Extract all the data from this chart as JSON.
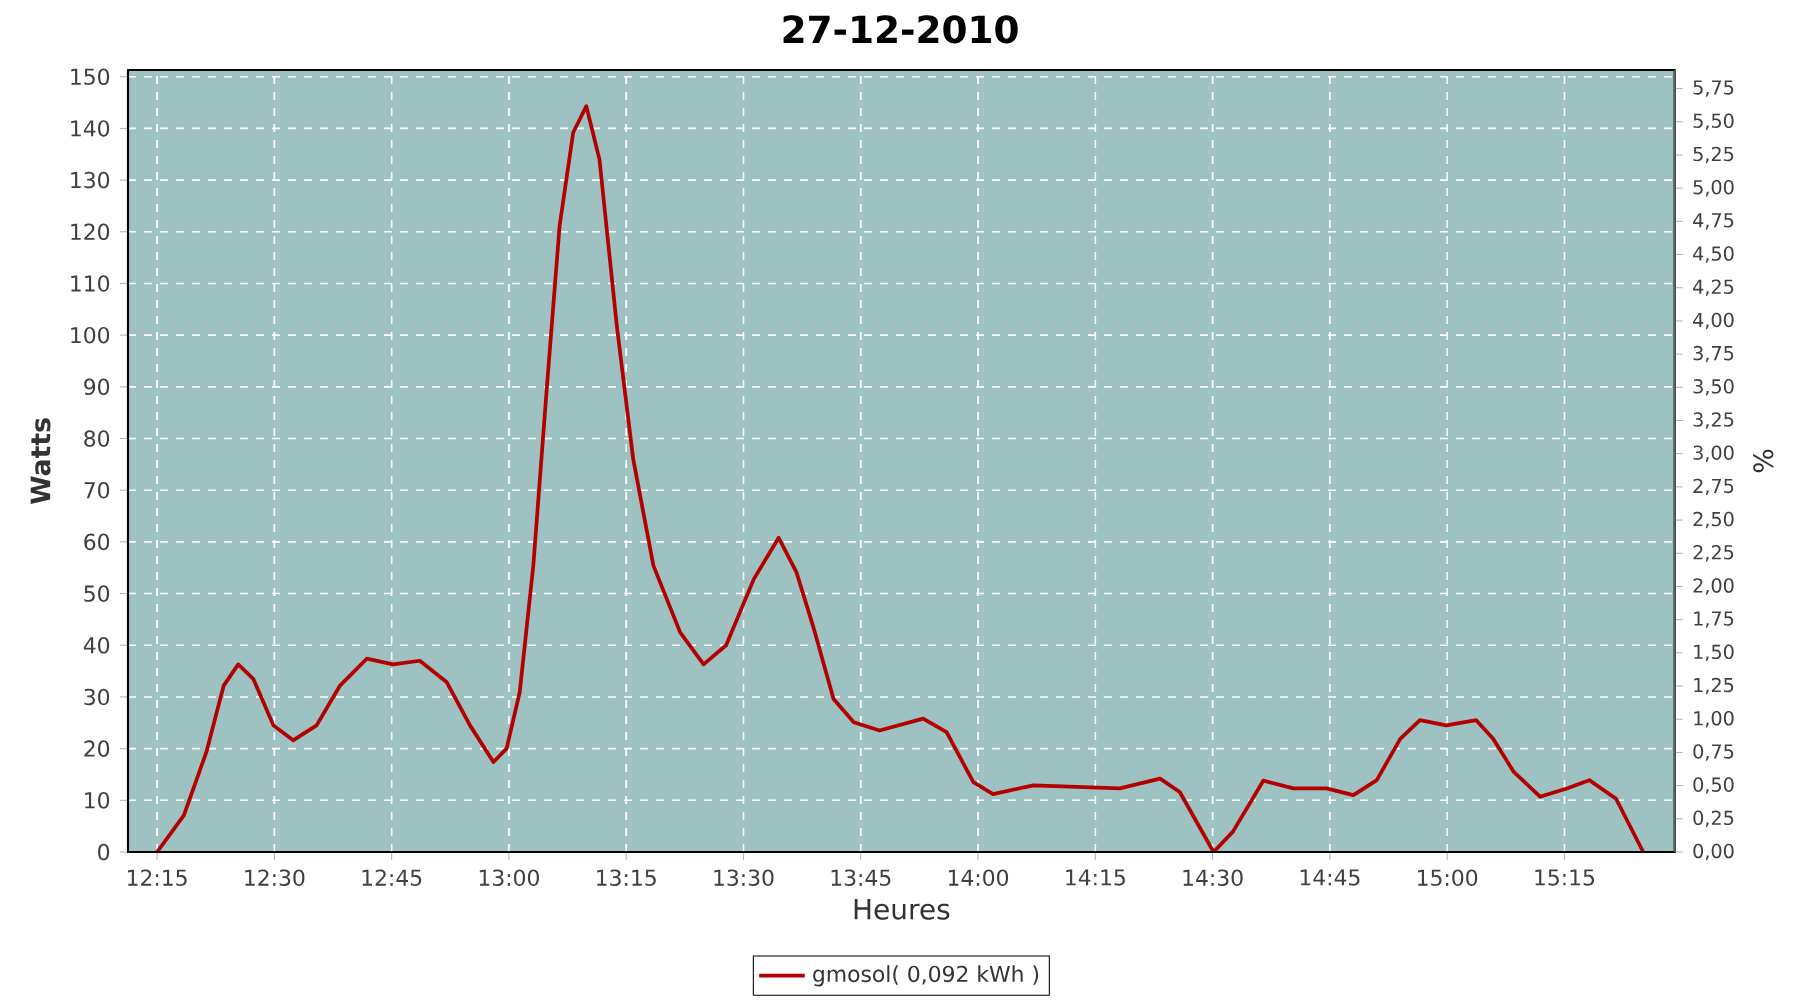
{
  "chart_data": {
    "type": "line",
    "title": "27-12-2010",
    "xlabel": "Heures",
    "ylabel": "Watts",
    "y2label": "%",
    "x": [
      12.25,
      12.307,
      12.355,
      12.392,
      12.423,
      12.455,
      12.498,
      12.54,
      12.59,
      12.64,
      12.697,
      12.753,
      12.81,
      12.867,
      12.917,
      12.967,
      12.995,
      13.023,
      13.052,
      13.08,
      13.108,
      13.137,
      13.165,
      13.193,
      13.23,
      13.265,
      13.308,
      13.365,
      13.415,
      13.463,
      13.522,
      13.575,
      13.613,
      13.648,
      13.692,
      13.735,
      13.79,
      13.883,
      13.933,
      13.99,
      14.032,
      14.118,
      14.302,
      14.388,
      14.43,
      14.502,
      14.543,
      14.608,
      14.672,
      14.743,
      14.8,
      14.85,
      14.9,
      14.942,
      14.998,
      15.062,
      15.098,
      15.142,
      15.198,
      15.255,
      15.303,
      15.36,
      15.418
    ],
    "series": [
      {
        "name": "gmosol( 0,092 kWh )",
        "color": "#b30000",
        "values": [
          0,
          7.1,
          19.3,
          32.2,
          36.3,
          33.5,
          24.5,
          21.6,
          24.5,
          32.2,
          37.4,
          36.3,
          37.0,
          32.9,
          24.5,
          17.4,
          20,
          30.9,
          55.4,
          88.9,
          121.1,
          139.2,
          144.3,
          134,
          101.8,
          76,
          55.4,
          42.5,
          36.3,
          40,
          52.8,
          60.8,
          54.1,
          43.8,
          29.6,
          25.1,
          23.5,
          25.8,
          23.2,
          13.5,
          11.2,
          12.9,
          12.3,
          14.2,
          11.6,
          0,
          3.9,
          13.8,
          12.3,
          12.3,
          11.0,
          13.9,
          21.9,
          25.5,
          24.5,
          25.5,
          21.9,
          15.5,
          10.7,
          12.3,
          13.9,
          10.3,
          0
        ]
      }
    ],
    "xlim": [
      12.188,
      15.485
    ],
    "xticks": [
      {
        "value": 12.25,
        "label": "12:15"
      },
      {
        "value": 12.5,
        "label": "12:30"
      },
      {
        "value": 12.75,
        "label": "12:45"
      },
      {
        "value": 13.0,
        "label": "13:00"
      },
      {
        "value": 13.25,
        "label": "13:15"
      },
      {
        "value": 13.5,
        "label": "13:30"
      },
      {
        "value": 13.75,
        "label": "13:45"
      },
      {
        "value": 14.0,
        "label": "14:00"
      },
      {
        "value": 14.25,
        "label": "14:15"
      },
      {
        "value": 14.5,
        "label": "14:30"
      },
      {
        "value": 14.75,
        "label": "14:45"
      },
      {
        "value": 15.0,
        "label": "15:00"
      },
      {
        "value": 15.25,
        "label": "15:15"
      }
    ],
    "ylim": [
      0,
      151.3
    ],
    "yticks": [
      0,
      10,
      20,
      30,
      40,
      50,
      60,
      70,
      80,
      90,
      100,
      110,
      120,
      130,
      140,
      150
    ],
    "y2lim": [
      0,
      5.89
    ],
    "y2ticks": [
      {
        "value": 0,
        "label": "0,00"
      },
      {
        "value": 0.25,
        "label": "0,25"
      },
      {
        "value": 0.5,
        "label": "0,50"
      },
      {
        "value": 0.75,
        "label": "0,75"
      },
      {
        "value": 1.0,
        "label": "1,00"
      },
      {
        "value": 1.25,
        "label": "1,25"
      },
      {
        "value": 1.5,
        "label": "1,50"
      },
      {
        "value": 1.75,
        "label": "1,75"
      },
      {
        "value": 2.0,
        "label": "2,00"
      },
      {
        "value": 2.25,
        "label": "2,25"
      },
      {
        "value": 2.5,
        "label": "2,50"
      },
      {
        "value": 2.75,
        "label": "2,75"
      },
      {
        "value": 3.0,
        "label": "3,00"
      },
      {
        "value": 3.25,
        "label": "3,25"
      },
      {
        "value": 3.5,
        "label": "3,50"
      },
      {
        "value": 3.75,
        "label": "3,75"
      },
      {
        "value": 4.0,
        "label": "4,00"
      },
      {
        "value": 4.25,
        "label": "4,25"
      },
      {
        "value": 4.5,
        "label": "4,50"
      },
      {
        "value": 4.75,
        "label": "4,75"
      },
      {
        "value": 5.0,
        "label": "5,00"
      },
      {
        "value": 5.25,
        "label": "5,25"
      },
      {
        "value": 5.5,
        "label": "5,50"
      },
      {
        "value": 5.75,
        "label": "5,75"
      }
    ],
    "grid": true,
    "legend": "bottom",
    "marker": "none",
    "line_style": "solid"
  }
}
